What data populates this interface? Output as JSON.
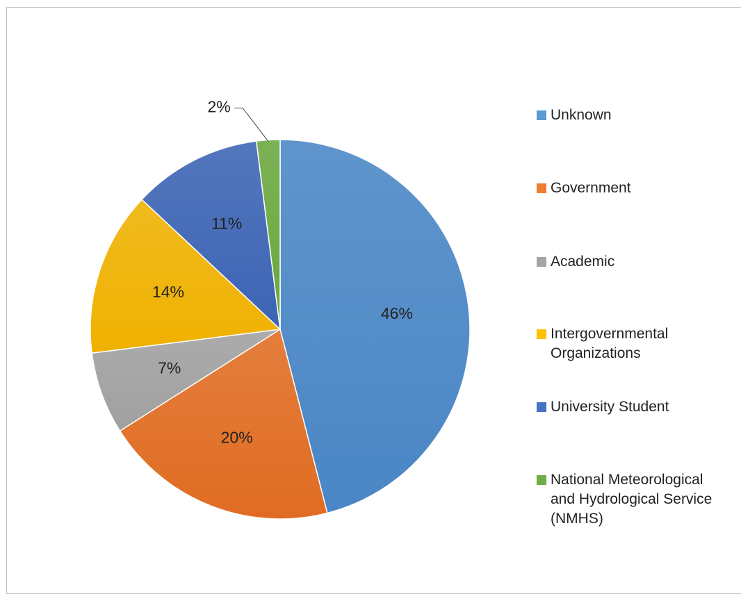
{
  "chart_data": {
    "type": "pie",
    "title": "",
    "categories": [
      "Unknown",
      "Government",
      "Academic",
      "Intergovernmental Organizations",
      "University Student",
      "National Meteorological and Hydrological Service (NMHS)"
    ],
    "values": [
      46,
      20,
      7,
      14,
      11,
      2
    ],
    "value_labels": [
      "46%",
      "20%",
      "7%",
      "14%",
      "11%",
      "2%"
    ],
    "colors": [
      "#4a86c5",
      "#e06c22",
      "#a0a0a0",
      "#efb100",
      "#3c64b4",
      "#6aa73f"
    ],
    "legend_position": "right",
    "start_angle_deg": 0,
    "direction": "clockwise"
  },
  "legend": {
    "items": [
      {
        "label": "Unknown",
        "color": "#5b9bd5"
      },
      {
        "label": "Government",
        "color": "#ed7d31"
      },
      {
        "label": "Academic",
        "color": "#a5a5a5"
      },
      {
        "label": "Intergovernmental\nOrganizations",
        "color": "#ffc000"
      },
      {
        "label": "University Student",
        "color": "#4472c4"
      },
      {
        "label": "National Meteorological\nand Hydrological Service\n(NMHS)",
        "color": "#70ad47"
      }
    ]
  }
}
